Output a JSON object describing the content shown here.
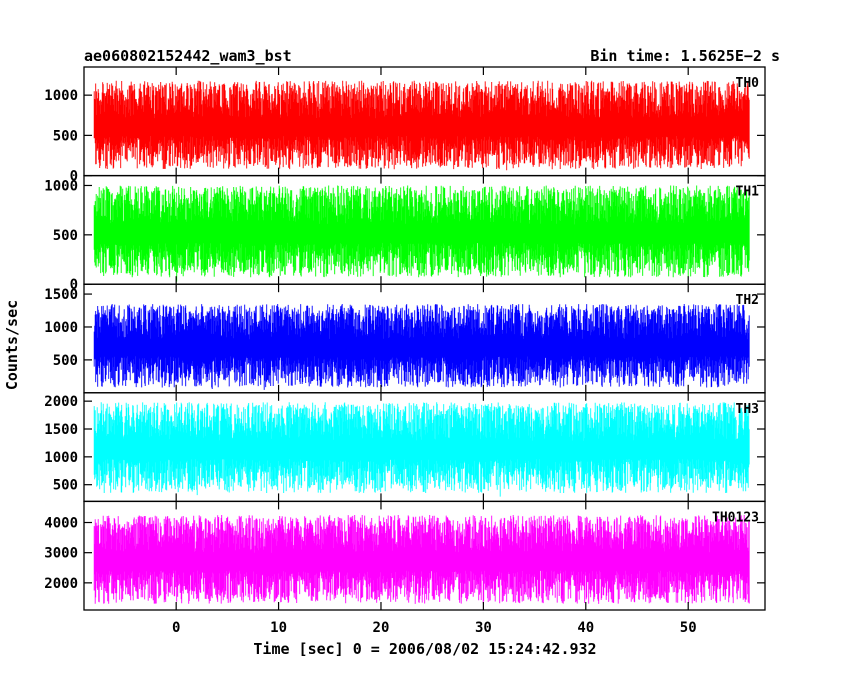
{
  "header": {
    "title": "ae060802152442_wam3_bst",
    "bin_time": "Bin time: 1.5625E−2 s"
  },
  "chart_data": {
    "type": "line",
    "xlabel": "Time [sec] 0 = 2006/08/02 15:24:42.932",
    "ylabel": "Counts/sec",
    "xlim": [
      -9,
      57.5
    ],
    "x_data_range": [
      -8,
      56
    ],
    "x_ticks": [
      0,
      10,
      20,
      30,
      40,
      50
    ],
    "x_tick_labels": [
      "0",
      "10",
      "20",
      "30",
      "40",
      "50"
    ],
    "panels": [
      {
        "name": "TH0",
        "color": "#ff0000",
        "ylim": [
          0,
          1350
        ],
        "y_ticks": [
          0,
          500,
          1000
        ],
        "y_tick_labels": [
          "0",
          "500",
          "1000"
        ],
        "typical_range": [
          80,
          1180
        ]
      },
      {
        "name": "TH1",
        "color": "#00ff00",
        "ylim": [
          0,
          1100
        ],
        "y_ticks": [
          0,
          500,
          1000
        ],
        "y_tick_labels": [
          "0",
          "500",
          "1000"
        ],
        "typical_range": [
          70,
          1000
        ]
      },
      {
        "name": "TH2",
        "color": "#0000ff",
        "ylim": [
          0,
          1650
        ],
        "y_ticks": [
          500,
          1000,
          1500
        ],
        "y_tick_labels": [
          "500",
          "1000",
          "1500"
        ],
        "typical_range": [
          80,
          1350
        ]
      },
      {
        "name": "TH3",
        "color": "#00ffff",
        "ylim": [
          200,
          2150
        ],
        "y_ticks": [
          500,
          1000,
          1500,
          2000
        ],
        "y_tick_labels": [
          "500",
          "1000",
          "1500",
          "2000"
        ],
        "typical_range": [
          350,
          1980
        ]
      },
      {
        "name": "TH0123",
        "color": "#ff00ff",
        "ylim": [
          1100,
          4700
        ],
        "y_ticks": [
          2000,
          3000,
          4000
        ],
        "y_tick_labels": [
          "2000",
          "3000",
          "4000"
        ],
        "typical_range": [
          1300,
          4250
        ]
      }
    ]
  }
}
